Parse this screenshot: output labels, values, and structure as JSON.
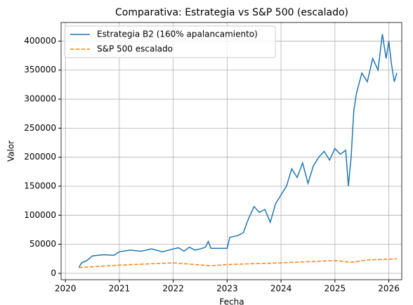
{
  "chart_data": {
    "type": "line",
    "title": "Comparativa: Estrategia vs S&P 500 (escalado)",
    "xlabel": "Fecha",
    "ylabel": "Valor",
    "series": [
      {
        "name": "Estrategia B2 (160% apalancamiento)",
        "color": "#1f77b4",
        "dash": "solid",
        "x": [
          2020.25,
          2020.3,
          2020.4,
          2020.5,
          2020.7,
          2020.9,
          2021.0,
          2021.2,
          2021.4,
          2021.6,
          2021.8,
          2022.0,
          2022.1,
          2022.2,
          2022.3,
          2022.4,
          2022.5,
          2022.6,
          2022.65,
          2022.7,
          2023.0,
          2023.05,
          2023.2,
          2023.3,
          2023.4,
          2023.5,
          2023.6,
          2023.7,
          2023.8,
          2023.9,
          2024.0,
          2024.1,
          2024.2,
          2024.3,
          2024.4,
          2024.5,
          2024.6,
          2024.7,
          2024.8,
          2024.9,
          2025.0,
          2025.1,
          2025.2,
          2025.25,
          2025.3,
          2025.35,
          2025.4,
          2025.5,
          2025.6,
          2025.7,
          2025.8,
          2025.88,
          2025.95,
          2026.0,
          2026.05,
          2026.1,
          2026.15
        ],
        "values": [
          10000,
          18000,
          22000,
          30000,
          32000,
          31000,
          37000,
          40000,
          38000,
          42000,
          37000,
          42000,
          44000,
          38000,
          45000,
          40000,
          42000,
          45000,
          55000,
          43000,
          43000,
          62000,
          65000,
          70000,
          95000,
          115000,
          105000,
          110000,
          88000,
          120000,
          135000,
          150000,
          180000,
          165000,
          190000,
          155000,
          185000,
          200000,
          210000,
          195000,
          215000,
          205000,
          212000,
          150000,
          200000,
          280000,
          310000,
          345000,
          330000,
          370000,
          350000,
          412000,
          370000,
          400000,
          360000,
          330000,
          345000
        ]
      },
      {
        "name": "S&P 500 escalado",
        "color": "#ff7f0e",
        "dash": "dashed",
        "x": [
          2020.25,
          2021.0,
          2022.0,
          2022.7,
          2023.0,
          2024.0,
          2025.0,
          2025.3,
          2025.6,
          2026.15
        ],
        "values": [
          10000,
          14000,
          18000,
          13000,
          15000,
          18000,
          22000,
          19000,
          23000,
          25000
        ]
      }
    ],
    "xlim": [
      2019.92,
      2026.24
    ],
    "xticks": [
      2020,
      2021,
      2022,
      2023,
      2024,
      2025,
      2026
    ],
    "ylim": [
      -11000,
      432000
    ],
    "yticks": [
      0,
      50000,
      100000,
      150000,
      200000,
      250000,
      300000,
      350000,
      400000
    ],
    "grid": true,
    "legend": "upper-left"
  }
}
